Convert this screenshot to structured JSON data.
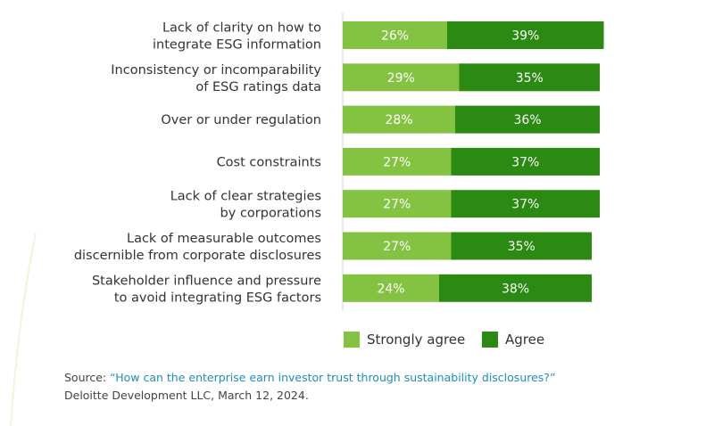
{
  "chart_data": {
    "type": "bar",
    "orientation": "horizontal",
    "stacked": true,
    "categories": [
      [
        "Lack of clarity on how to",
        "integrate ESG information"
      ],
      [
        "Inconsistency or incomparability",
        "of ESG ratings data"
      ],
      [
        "Over or under regulation"
      ],
      [
        "Cost constraints"
      ],
      [
        "Lack of clear strategies",
        "by corporations"
      ],
      [
        "Lack of measurable outcomes",
        "discernible from corporate disclosures"
      ],
      [
        "Stakeholder influence and pressure",
        "to avoid integrating ESG factors"
      ]
    ],
    "series": [
      {
        "name": "Strongly agree",
        "color": "#84c341",
        "values": [
          26,
          29,
          28,
          27,
          27,
          27,
          24
        ]
      },
      {
        "name": "Agree",
        "color": "#2a8a11",
        "values": [
          39,
          35,
          36,
          37,
          37,
          35,
          38
        ]
      }
    ],
    "value_suffix": "%",
    "legend_position": "bottom",
    "grid": false
  },
  "source": {
    "prefix": "Source: ",
    "link_text": "“How can the enterprise earn investor trust through sustainability disclosures?”",
    "line2": "Deloitte Development LLC, March 12, 2024."
  }
}
